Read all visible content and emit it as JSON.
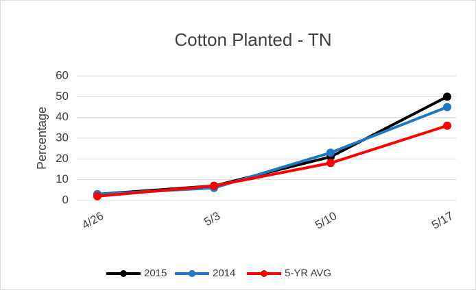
{
  "chart_data": {
    "type": "line",
    "title": "Cotton Planted - TN",
    "y_label": "Percentage",
    "categories": [
      "4/26",
      "5/3",
      "5/10",
      "5/17"
    ],
    "series": [
      {
        "name": "2015",
        "color": "#000000",
        "values": [
          3,
          7,
          21,
          50
        ]
      },
      {
        "name": "2014",
        "color": "#1f77c4",
        "values": [
          3,
          6,
          23,
          45
        ]
      },
      {
        "name": "5-YR AVG",
        "color": "#ff0000",
        "values": [
          2,
          7,
          18,
          36
        ]
      }
    ],
    "ylim": [
      0,
      60
    ],
    "yticks": [
      0,
      10,
      20,
      30,
      40,
      50,
      60
    ],
    "grid": true,
    "legend": "bottom"
  }
}
